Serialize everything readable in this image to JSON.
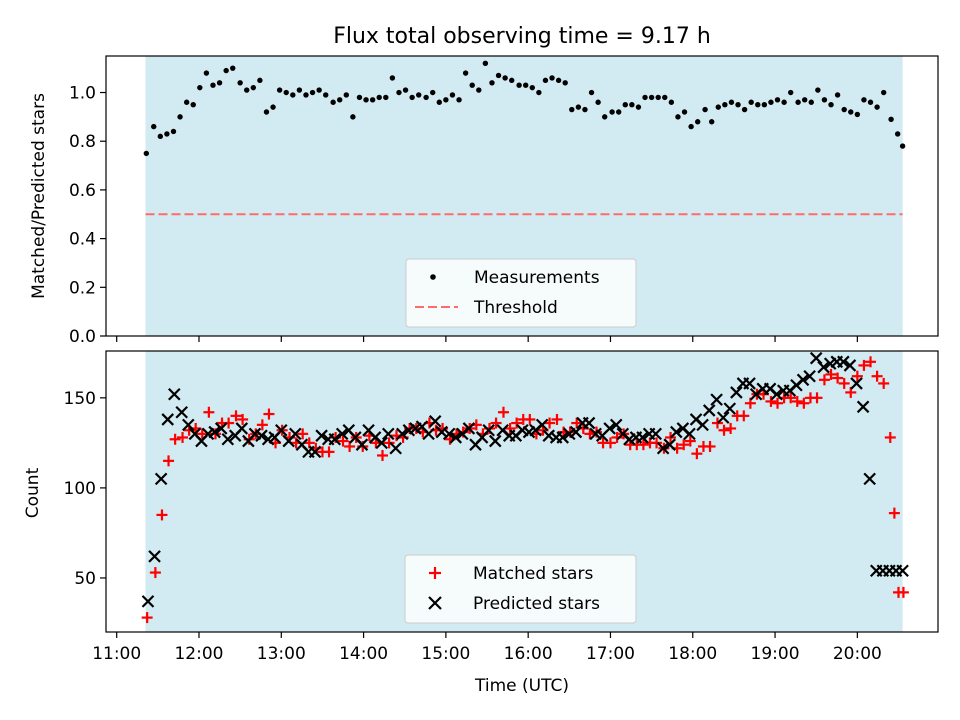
{
  "figure_title": "Flux total observing time = 9.17 h",
  "colors": {
    "shade": "#add8e6",
    "measurement": "#000000",
    "threshold": "#ff6b6b",
    "matched": "#ff0000",
    "predicted": "#000000"
  },
  "chart_data": [
    {
      "type": "scatter",
      "title": "Flux total observing time = 9.17 h",
      "xlabel": "",
      "ylabel": "Matched/Predicted stars",
      "x_unit": "hours UTC",
      "xlim": [
        10.87,
        20.98
      ],
      "ylim": [
        0.0,
        1.15
      ],
      "yticks": [
        "0.0",
        "0.2",
        "0.4",
        "0.6",
        "0.8",
        "1.0"
      ],
      "ytick_values": [
        0.0,
        0.2,
        0.4,
        0.6,
        0.8,
        1.0
      ],
      "shaded_span": [
        11.35,
        20.55
      ],
      "threshold": 0.5,
      "legend_position": "lower center",
      "series": [
        {
          "name": "Measurements",
          "marker": "dot",
          "x": [
            11.36,
            11.45,
            11.53,
            11.61,
            11.69,
            11.77,
            11.85,
            11.93,
            12.01,
            12.09,
            12.17,
            12.25,
            12.33,
            12.41,
            12.5,
            12.58,
            12.66,
            12.74,
            12.82,
            12.9,
            12.98,
            13.06,
            13.14,
            13.22,
            13.3,
            13.38,
            13.46,
            13.54,
            13.63,
            13.71,
            13.79,
            13.87,
            13.95,
            14.03,
            14.11,
            14.19,
            14.27,
            14.35,
            14.43,
            14.51,
            14.59,
            14.67,
            14.76,
            14.84,
            14.92,
            15.0,
            15.08,
            15.16,
            15.24,
            15.32,
            15.4,
            15.48,
            15.56,
            15.64,
            15.72,
            15.8,
            15.89,
            15.97,
            16.05,
            16.13,
            16.21,
            16.29,
            16.37,
            16.45,
            16.53,
            16.61,
            16.69,
            16.77,
            16.85,
            16.93,
            17.02,
            17.1,
            17.18,
            17.26,
            17.34,
            17.42,
            17.5,
            17.58,
            17.66,
            17.74,
            17.82,
            17.9,
            17.98,
            18.06,
            18.15,
            18.23,
            18.31,
            18.39,
            18.47,
            18.55,
            18.63,
            18.71,
            18.79,
            18.87,
            18.95,
            19.03,
            19.11,
            19.19,
            19.28,
            19.36,
            19.44,
            19.52,
            19.6,
            19.68,
            19.76,
            19.84,
            19.92,
            20.0,
            20.08,
            20.16,
            20.24,
            20.32,
            20.41,
            20.49,
            20.55
          ],
          "y": [
            0.75,
            0.86,
            0.82,
            0.83,
            0.84,
            0.9,
            0.96,
            0.95,
            1.02,
            1.08,
            1.03,
            1.04,
            1.09,
            1.1,
            1.04,
            1.01,
            1.02,
            1.05,
            0.92,
            0.94,
            1.01,
            1.0,
            0.99,
            1.01,
            0.99,
            1.0,
            1.01,
            0.99,
            0.96,
            0.97,
            0.99,
            0.9,
            0.98,
            0.97,
            0.97,
            0.98,
            0.98,
            1.06,
            1.0,
            1.01,
            0.98,
            0.99,
            0.98,
            1.0,
            0.96,
            0.97,
            0.99,
            0.97,
            1.08,
            1.03,
            1.01,
            1.12,
            1.04,
            1.07,
            1.06,
            1.05,
            1.03,
            1.03,
            1.02,
            1.0,
            1.05,
            1.06,
            1.05,
            1.04,
            0.93,
            0.94,
            0.93,
            1.0,
            0.96,
            0.9,
            0.92,
            0.92,
            0.95,
            0.95,
            0.94,
            0.98,
            0.98,
            0.98,
            0.98,
            0.96,
            0.9,
            0.92,
            0.86,
            0.88,
            0.93,
            0.88,
            0.94,
            0.95,
            0.96,
            0.95,
            0.93,
            0.96,
            0.95,
            0.95,
            0.96,
            0.97,
            0.96,
            1.0,
            0.96,
            0.97,
            0.96,
            1.01,
            0.97,
            0.95,
            0.99,
            0.93,
            0.92,
            0.91,
            0.97,
            0.96,
            0.94,
            1.0,
            0.89,
            0.83,
            0.78
          ]
        },
        {
          "name": "Threshold",
          "marker": "dashed-line",
          "x": [
            11.35,
            20.55
          ],
          "y": [
            0.5,
            0.5
          ]
        }
      ]
    },
    {
      "type": "scatter",
      "title": "",
      "xlabel": "Time (UTC)",
      "ylabel": "Count",
      "x_unit": "hours UTC",
      "xlim": [
        10.87,
        20.98
      ],
      "ylim": [
        20,
        176
      ],
      "xticks": [
        "11:00",
        "12:00",
        "13:00",
        "14:00",
        "15:00",
        "16:00",
        "17:00",
        "18:00",
        "19:00",
        "20:00"
      ],
      "xtick_values": [
        11,
        12,
        13,
        14,
        15,
        16,
        17,
        18,
        19,
        20
      ],
      "yticks": [
        "50",
        "100",
        "150"
      ],
      "ytick_values": [
        50,
        100,
        150
      ],
      "shaded_span": [
        11.35,
        20.55
      ],
      "legend_position": "lower center",
      "series": [
        {
          "name": "Matched stars",
          "marker": "plus",
          "x": [
            11.37,
            11.47,
            11.55,
            11.63,
            11.71,
            11.8,
            11.88,
            11.96,
            12.04,
            12.12,
            12.2,
            12.28,
            12.36,
            12.45,
            12.53,
            12.61,
            12.69,
            12.77,
            12.85,
            12.93,
            13.01,
            13.1,
            13.18,
            13.26,
            13.34,
            13.42,
            13.5,
            13.58,
            13.66,
            13.75,
            13.83,
            13.91,
            13.99,
            14.07,
            14.15,
            14.23,
            14.31,
            14.4,
            14.48,
            14.56,
            14.64,
            14.72,
            14.8,
            14.88,
            14.96,
            15.05,
            15.13,
            15.21,
            15.29,
            15.37,
            15.45,
            15.53,
            15.61,
            15.7,
            15.78,
            15.86,
            15.94,
            16.02,
            16.1,
            16.18,
            16.26,
            16.35,
            16.43,
            16.51,
            16.59,
            16.67,
            16.75,
            16.83,
            16.91,
            17.0,
            17.08,
            17.16,
            17.24,
            17.32,
            17.4,
            17.48,
            17.56,
            17.65,
            17.73,
            17.81,
            17.89,
            17.97,
            18.05,
            18.13,
            18.21,
            18.3,
            18.38,
            18.46,
            18.54,
            18.62,
            18.7,
            18.78,
            18.86,
            18.95,
            19.03,
            19.11,
            19.19,
            19.27,
            19.35,
            19.43,
            19.51,
            19.6,
            19.68,
            19.76,
            19.84,
            19.92,
            20.0,
            20.08,
            20.16,
            20.24,
            20.32,
            20.4,
            20.45,
            20.5,
            20.56
          ],
          "y": [
            28,
            53,
            85,
            115,
            127,
            128,
            132,
            133,
            130,
            142,
            130,
            136,
            136,
            140,
            138,
            127,
            130,
            135,
            141,
            125,
            132,
            128,
            125,
            130,
            125,
            122,
            120,
            120,
            128,
            126,
            123,
            128,
            123,
            129,
            125,
            118,
            125,
            129,
            128,
            133,
            133,
            131,
            136,
            132,
            133,
            127,
            130,
            131,
            133,
            135,
            130,
            133,
            136,
            142,
            133,
            136,
            138,
            138,
            130,
            132,
            136,
            138,
            131,
            131,
            136,
            133,
            130,
            131,
            125,
            125,
            128,
            130,
            124,
            124,
            124,
            125,
            125,
            122,
            128,
            122,
            124,
            126,
            119,
            123,
            123,
            136,
            132,
            133,
            140,
            140,
            147,
            152,
            152,
            148,
            147,
            150,
            150,
            148,
            147,
            150,
            150,
            160,
            163,
            161,
            158,
            153,
            162,
            168,
            170,
            162,
            158,
            128,
            86,
            42,
            42
          ]
        },
        {
          "name": "Predicted stars",
          "marker": "x",
          "x": [
            11.38,
            11.46,
            11.54,
            11.62,
            11.7,
            11.79,
            11.87,
            11.95,
            12.03,
            12.11,
            12.19,
            12.27,
            12.35,
            12.44,
            12.52,
            12.6,
            12.68,
            12.76,
            12.84,
            12.92,
            13.0,
            13.09,
            13.17,
            13.25,
            13.33,
            13.41,
            13.49,
            13.57,
            13.65,
            13.74,
            13.82,
            13.9,
            13.98,
            14.06,
            14.14,
            14.22,
            14.3,
            14.39,
            14.47,
            14.55,
            14.63,
            14.71,
            14.79,
            14.87,
            14.95,
            15.04,
            15.12,
            15.2,
            15.28,
            15.36,
            15.44,
            15.52,
            15.6,
            15.69,
            15.77,
            15.85,
            15.93,
            16.01,
            16.09,
            16.17,
            16.25,
            16.34,
            16.42,
            16.5,
            16.58,
            16.66,
            16.74,
            16.82,
            16.9,
            16.99,
            17.07,
            17.15,
            17.23,
            17.31,
            17.39,
            17.47,
            17.55,
            17.64,
            17.72,
            17.8,
            17.88,
            17.96,
            18.04,
            18.12,
            18.2,
            18.29,
            18.37,
            18.45,
            18.53,
            18.61,
            18.69,
            18.77,
            18.85,
            18.94,
            19.02,
            19.1,
            19.18,
            19.26,
            19.34,
            19.42,
            19.5,
            19.59,
            19.67,
            19.75,
            19.83,
            19.91,
            19.99,
            20.07,
            20.15,
            20.23,
            20.31,
            20.39,
            20.47,
            20.55
          ],
          "y": [
            37,
            62,
            105,
            138,
            152,
            142,
            135,
            130,
            126,
            130,
            131,
            133,
            127,
            129,
            133,
            126,
            130,
            129,
            127,
            128,
            132,
            126,
            130,
            124,
            120,
            120,
            129,
            127,
            127,
            130,
            132,
            128,
            124,
            132,
            128,
            125,
            130,
            122,
            130,
            132,
            133,
            134,
            130,
            137,
            131,
            130,
            128,
            130,
            133,
            124,
            128,
            132,
            126,
            132,
            129,
            129,
            132,
            131,
            132,
            135,
            129,
            128,
            128,
            130,
            131,
            136,
            136,
            130,
            129,
            133,
            135,
            130,
            127,
            128,
            128,
            130,
            130,
            122,
            124,
            131,
            133,
            130,
            138,
            135,
            143,
            149,
            139,
            144,
            153,
            158,
            158,
            152,
            155,
            155,
            152,
            154,
            154,
            157,
            160,
            162,
            172,
            167,
            169,
            170,
            170,
            168,
            158,
            145,
            105,
            54,
            54,
            54,
            54,
            54
          ]
        }
      ]
    }
  ]
}
